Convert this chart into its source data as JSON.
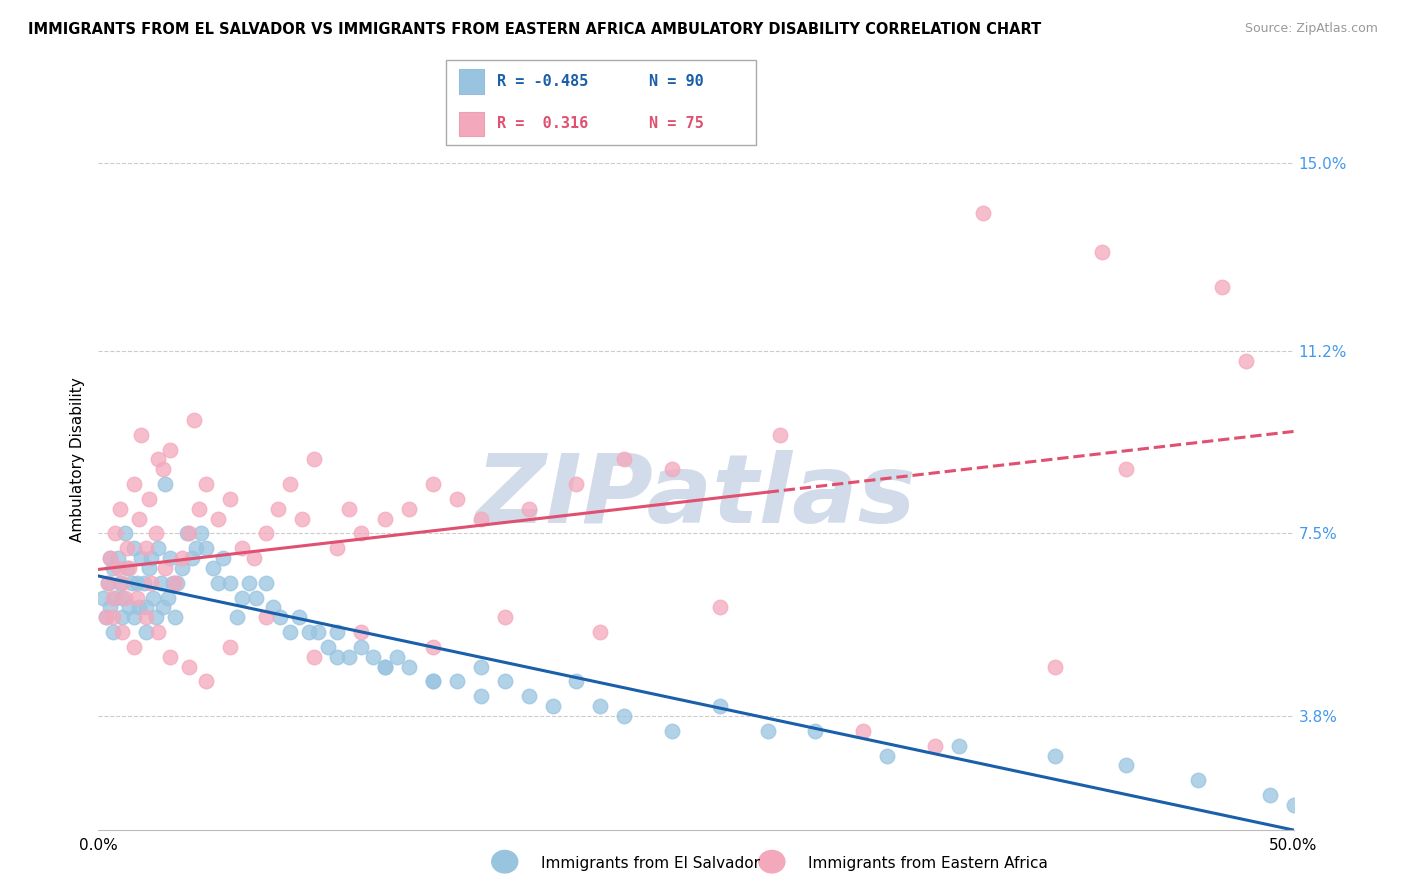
{
  "title": "IMMIGRANTS FROM EL SALVADOR VS IMMIGRANTS FROM EASTERN AFRICA AMBULATORY DISABILITY CORRELATION CHART",
  "source": "Source: ZipAtlas.com",
  "ylabel": "Ambulatory Disability",
  "yticks_right": [
    3.8,
    7.5,
    11.2,
    15.0
  ],
  "ytick_labels_right": [
    "3.8%",
    "7.5%",
    "11.2%",
    "15.0%"
  ],
  "xlim": [
    0.0,
    50.0
  ],
  "ylim": [
    1.5,
    16.5
  ],
  "color_blue": "#99c4e0",
  "color_pink": "#f4a8bc",
  "trend_blue": "#1a5faa",
  "trend_pink": "#e05070",
  "watermark": "ZIPatlas",
  "watermark_color": "#cdd8e8",
  "el_salvador_x": [
    0.2,
    0.3,
    0.4,
    0.5,
    0.5,
    0.6,
    0.6,
    0.7,
    0.8,
    0.9,
    1.0,
    1.0,
    1.1,
    1.2,
    1.3,
    1.4,
    1.5,
    1.5,
    1.6,
    1.7,
    1.8,
    1.9,
    2.0,
    2.0,
    2.1,
    2.2,
    2.3,
    2.4,
    2.5,
    2.6,
    2.7,
    2.8,
    2.9,
    3.0,
    3.1,
    3.2,
    3.3,
    3.5,
    3.7,
    3.9,
    4.1,
    4.3,
    4.5,
    4.8,
    5.0,
    5.2,
    5.5,
    5.8,
    6.0,
    6.3,
    6.6,
    7.0,
    7.3,
    7.6,
    8.0,
    8.4,
    8.8,
    9.2,
    9.6,
    10.0,
    10.5,
    11.0,
    11.5,
    12.0,
    12.5,
    13.0,
    14.0,
    15.0,
    16.0,
    17.0,
    18.0,
    19.0,
    20.0,
    21.0,
    22.0,
    24.0,
    26.0,
    28.0,
    30.0,
    33.0,
    36.0,
    40.0,
    43.0,
    46.0,
    49.0,
    50.0,
    10.0,
    12.0,
    14.0,
    16.0
  ],
  "el_salvador_y": [
    6.2,
    5.8,
    6.5,
    7.0,
    6.0,
    6.8,
    5.5,
    6.2,
    7.0,
    6.5,
    6.2,
    5.8,
    7.5,
    6.8,
    6.0,
    6.5,
    7.2,
    5.8,
    6.5,
    6.0,
    7.0,
    6.5,
    6.0,
    5.5,
    6.8,
    7.0,
    6.2,
    5.8,
    7.2,
    6.5,
    6.0,
    8.5,
    6.2,
    7.0,
    6.5,
    5.8,
    6.5,
    6.8,
    7.5,
    7.0,
    7.2,
    7.5,
    7.2,
    6.8,
    6.5,
    7.0,
    6.5,
    5.8,
    6.2,
    6.5,
    6.2,
    6.5,
    6.0,
    5.8,
    5.5,
    5.8,
    5.5,
    5.5,
    5.2,
    5.5,
    5.0,
    5.2,
    5.0,
    4.8,
    5.0,
    4.8,
    4.5,
    4.5,
    4.2,
    4.5,
    4.2,
    4.0,
    4.5,
    4.0,
    3.8,
    3.5,
    4.0,
    3.5,
    3.5,
    3.0,
    3.2,
    3.0,
    2.8,
    2.5,
    2.2,
    2.0,
    5.0,
    4.8,
    4.5,
    4.8
  ],
  "eastern_africa_x": [
    0.3,
    0.4,
    0.5,
    0.6,
    0.7,
    0.8,
    0.9,
    1.0,
    1.1,
    1.2,
    1.3,
    1.5,
    1.6,
    1.7,
    1.8,
    2.0,
    2.1,
    2.2,
    2.4,
    2.5,
    2.7,
    2.8,
    3.0,
    3.2,
    3.5,
    3.8,
    4.0,
    4.2,
    4.5,
    5.0,
    5.5,
    6.0,
    6.5,
    7.0,
    7.5,
    8.0,
    8.5,
    9.0,
    10.0,
    10.5,
    11.0,
    12.0,
    13.0,
    14.0,
    15.0,
    16.0,
    18.0,
    20.0,
    22.0,
    24.0,
    28.5,
    35.0,
    40.0,
    43.0,
    0.6,
    1.0,
    1.5,
    2.0,
    2.5,
    3.0,
    3.8,
    4.5,
    5.5,
    7.0,
    9.0,
    11.0,
    14.0,
    17.0,
    21.0,
    26.0,
    32.0,
    37.0,
    42.0,
    47.0,
    48.0
  ],
  "eastern_africa_y": [
    5.8,
    6.5,
    7.0,
    6.2,
    7.5,
    6.8,
    8.0,
    6.5,
    6.2,
    7.2,
    6.8,
    8.5,
    6.2,
    7.8,
    9.5,
    7.2,
    8.2,
    6.5,
    7.5,
    9.0,
    8.8,
    6.8,
    9.2,
    6.5,
    7.0,
    7.5,
    9.8,
    8.0,
    8.5,
    7.8,
    8.2,
    7.2,
    7.0,
    7.5,
    8.0,
    8.5,
    7.8,
    9.0,
    7.2,
    8.0,
    7.5,
    7.8,
    8.0,
    8.5,
    8.2,
    7.8,
    8.0,
    8.5,
    9.0,
    8.8,
    9.5,
    3.2,
    4.8,
    8.8,
    5.8,
    5.5,
    5.2,
    5.8,
    5.5,
    5.0,
    4.8,
    4.5,
    5.2,
    5.8,
    5.0,
    5.5,
    5.2,
    5.8,
    5.5,
    6.0,
    3.5,
    14.0,
    13.2,
    12.5,
    11.0
  ]
}
